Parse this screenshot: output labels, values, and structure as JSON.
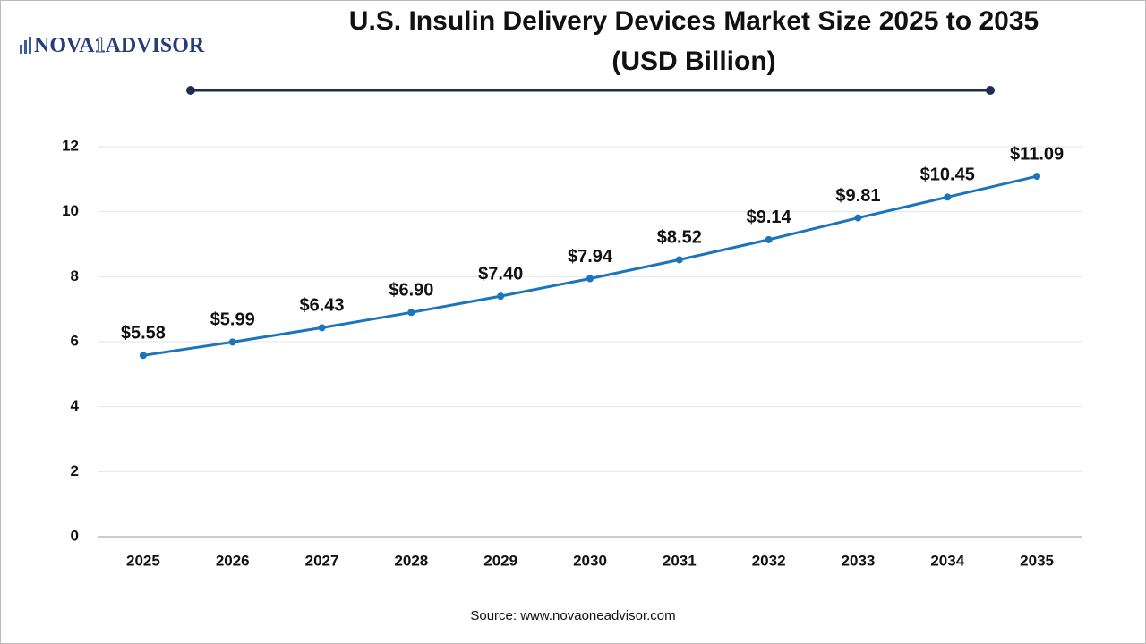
{
  "brand": {
    "name": "NOVA",
    "digit": "1",
    "suffix": "ADVISOR"
  },
  "chart_data": {
    "type": "line",
    "title": [
      "U.S. Insulin Delivery Devices Market Size 2025 to 2035",
      "(USD Billion)"
    ],
    "source": "Source: www.novaoneadvisor.com",
    "categories": [
      "2025",
      "2026",
      "2027",
      "2028",
      "2029",
      "2030",
      "2031",
      "2032",
      "2033",
      "2034",
      "2035"
    ],
    "series": [
      {
        "name": "Market Size",
        "color": "#1a75bc",
        "values": [
          5.58,
          5.99,
          6.43,
          6.9,
          7.4,
          7.94,
          8.52,
          9.14,
          9.81,
          10.45,
          11.09
        ],
        "value_labels": [
          "$5.58",
          "$5.99",
          "$6.43",
          "$6.90",
          "$7.40",
          "$7.94",
          "$8.52",
          "$9.14",
          "$9.81",
          "$10.45",
          "$11.09"
        ]
      }
    ],
    "ylim": [
      0,
      12
    ],
    "yticks": [
      0,
      2,
      4,
      6,
      8,
      10,
      12
    ],
    "grid": true
  }
}
